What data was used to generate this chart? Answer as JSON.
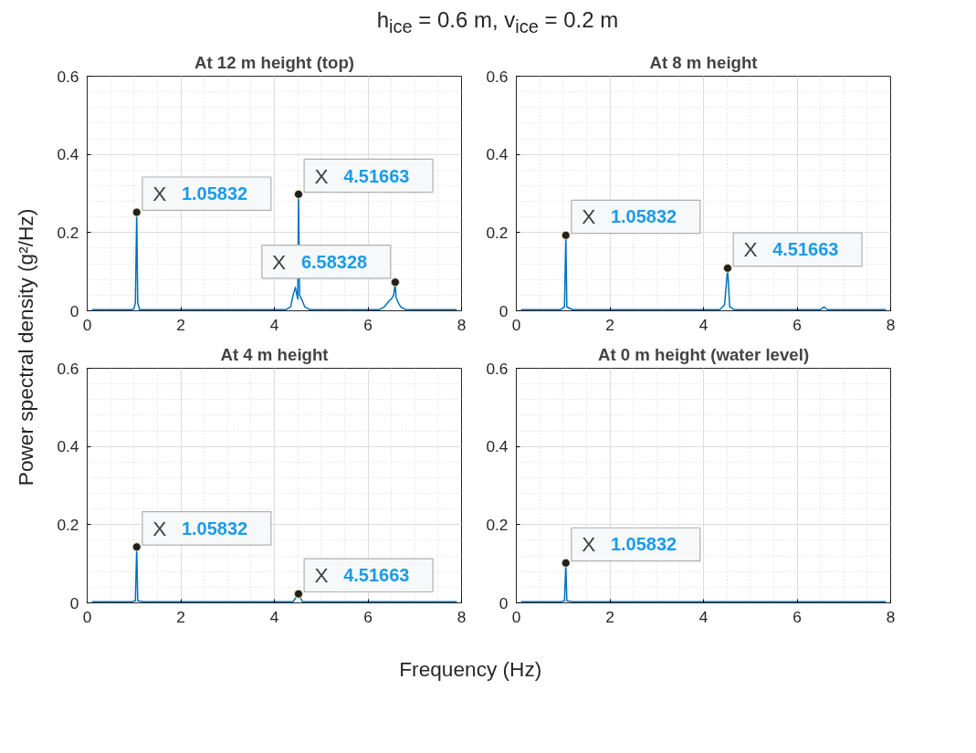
{
  "chart_data": [
    {
      "type": "line",
      "title": "At 12 m height (top)",
      "ylabel": "Power spectral density (g²/Hz)",
      "annotations": [
        "h$_{ice}$ = 0.6 m, v$_{ice}$ = 0.2 m",
        {
          "text": "X 1.05832",
          "x": 1.05832,
          "y": 0.252
        },
        {
          "text": "X 4.51663",
          "x": 4.51663,
          "y": 0.298
        },
        {
          "text": "X 6.58328",
          "x": 6.58328,
          "y": 0.073
        }
      ],
      "x": [
        0.1,
        0.95,
        1.0,
        1.03,
        1.05832,
        1.08,
        1.12,
        1.2,
        4.25,
        4.35,
        4.4,
        4.45,
        4.5,
        4.51663,
        4.54,
        4.6,
        4.65,
        4.75,
        6.25,
        6.35,
        6.45,
        6.5,
        6.55,
        6.58328,
        6.6,
        6.65,
        6.7,
        6.8,
        7.9
      ],
      "series": [
        {
          "color": "#0072bd",
          "values": [
            0.003,
            0.003,
            0.005,
            0.02,
            0.252,
            0.02,
            0.003,
            0.003,
            0.003,
            0.01,
            0.04,
            0.06,
            0.03,
            0.298,
            0.04,
            0.025,
            0.01,
            0.003,
            0.003,
            0.01,
            0.025,
            0.03,
            0.04,
            0.073,
            0.035,
            0.02,
            0.01,
            0.003,
            0.003
          ]
        }
      ],
      "xlim": [
        0,
        8
      ],
      "ylim": [
        0,
        0.6
      ],
      "xticks": [
        0,
        2,
        4,
        6,
        8
      ],
      "yticks": [
        0,
        0.2,
        0.4,
        0.6
      ],
      "grid": true,
      "marker": "none",
      "line_style": "solid"
    },
    {
      "type": "line",
      "title": "At 8 m height",
      "x": [
        0.1,
        0.95,
        1.03,
        1.05832,
        1.08,
        1.2,
        4.35,
        4.45,
        4.51663,
        4.56,
        4.65,
        6.5,
        6.58,
        6.65,
        7.9
      ],
      "series": [
        {
          "color": "#0072bd",
          "values": [
            0.003,
            0.003,
            0.01,
            0.193,
            0.01,
            0.003,
            0.003,
            0.015,
            0.109,
            0.01,
            0.003,
            0.003,
            0.01,
            0.003,
            0.003
          ]
        }
      ],
      "xlim": [
        0,
        8
      ],
      "ylim": [
        0,
        0.6
      ],
      "xticks": [
        0,
        2,
        4,
        6,
        8
      ],
      "yticks": [
        0,
        0.2,
        0.4,
        0.6
      ],
      "grid": true,
      "marker": "none",
      "line_style": "solid",
      "annotations": [
        {
          "text": "X 1.05832",
          "x": 1.05832,
          "y": 0.193
        },
        {
          "text": "X 4.51663",
          "x": 4.51663,
          "y": 0.109
        }
      ]
    },
    {
      "type": "line",
      "title": "At 4 m height",
      "xlabel": "Frequency (Hz)",
      "x": [
        0.1,
        0.95,
        1.03,
        1.05832,
        1.08,
        1.2,
        4.4,
        4.51663,
        4.6,
        7.9
      ],
      "series": [
        {
          "color": "#0072bd",
          "values": [
            0.003,
            0.003,
            0.005,
            0.143,
            0.005,
            0.003,
            0.003,
            0.023,
            0.003,
            0.003
          ]
        }
      ],
      "xlim": [
        0,
        8
      ],
      "ylim": [
        0,
        0.6
      ],
      "xticks": [
        0,
        2,
        4,
        6,
        8
      ],
      "yticks": [
        0,
        0.2,
        0.4,
        0.6
      ],
      "grid": true,
      "marker": "none",
      "line_style": "solid",
      "annotations": [
        {
          "text": "X 1.05832",
          "x": 1.05832,
          "y": 0.143
        },
        {
          "text": "X 4.51663",
          "x": 4.51663,
          "y": 0.023
        }
      ]
    },
    {
      "type": "line",
      "title": "At 0 m height (water level)",
      "x": [
        0.1,
        0.95,
        1.03,
        1.05832,
        1.08,
        1.2,
        7.9
      ],
      "series": [
        {
          "color": "#0072bd",
          "values": [
            0.003,
            0.003,
            0.005,
            0.102,
            0.005,
            0.003,
            0.003
          ]
        }
      ],
      "xlim": [
        0,
        8
      ],
      "ylim": [
        0,
        0.6
      ],
      "xticks": [
        0,
        2,
        4,
        6,
        8
      ],
      "yticks": [
        0,
        0.2,
        0.4,
        0.6
      ],
      "grid": true,
      "marker": "none",
      "line_style": "solid",
      "annotations": [
        {
          "text": "X 1.05832",
          "x": 1.05832,
          "y": 0.102
        }
      ]
    }
  ]
}
